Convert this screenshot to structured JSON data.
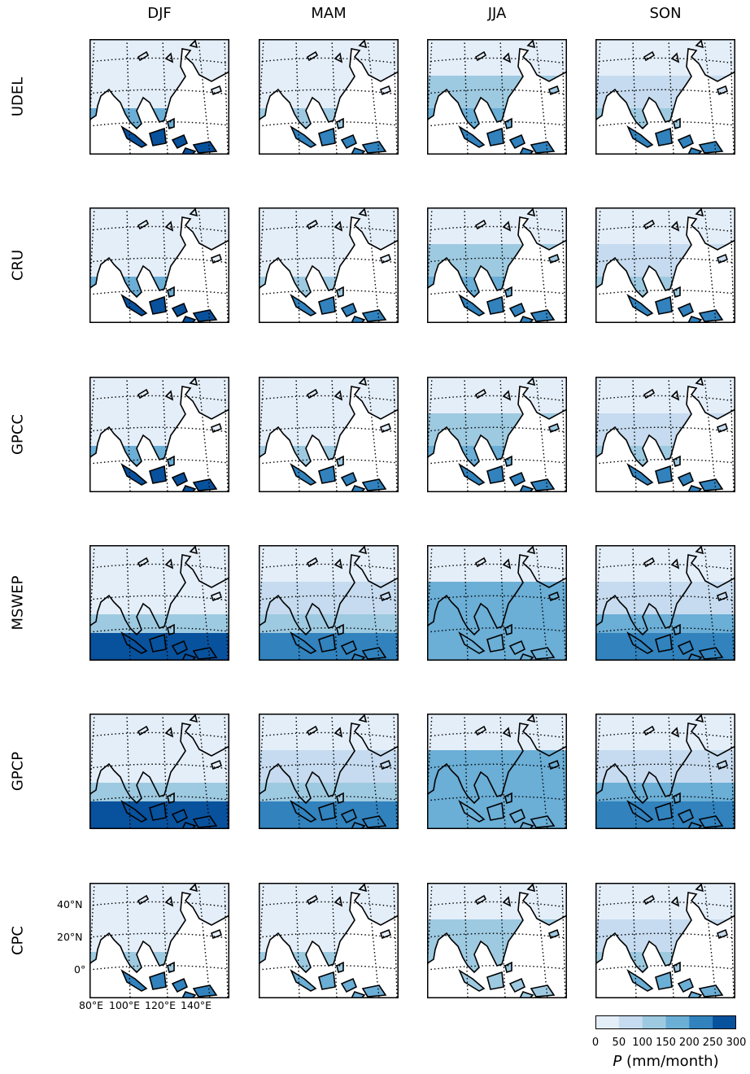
{
  "columns": [
    "DJF",
    "MAM",
    "JJA",
    "SON"
  ],
  "rows": [
    "UDEL",
    "CRU",
    "GPCC",
    "MSWEP",
    "GPCP",
    "CPC"
  ],
  "axes": {
    "lat_ticks": [
      "40°N",
      "20°N",
      "0°"
    ],
    "lon_ticks": [
      "80°E",
      "100°E",
      "120°E",
      "140°E"
    ]
  },
  "colorbar": {
    "ticks": [
      "0",
      "50",
      "100",
      "150",
      "200",
      "250",
      "300"
    ],
    "label_var": "P",
    "label_unit": " (mm/month)",
    "colors": [
      "#e4eef9",
      "#c6dbef",
      "#9ecae1",
      "#6baed6",
      "#3182bd",
      "#08519c"
    ]
  },
  "colors": {
    "land": "#e4eef9",
    "ocean": "#ffffff",
    "coast": "#000000"
  },
  "chart_data": {
    "type": "heatmap",
    "variable": "P",
    "units": "mm/month",
    "levels": [
      0,
      50,
      100,
      150,
      200,
      250,
      300
    ],
    "columns": [
      "DJF",
      "MAM",
      "JJA",
      "SON"
    ],
    "rows": [
      "UDEL",
      "CRU",
      "GPCC",
      "MSWEP",
      "GPCP",
      "CPC"
    ],
    "datasets": {
      "UDEL": {
        "coverage": "land",
        "DJF": {
          "north": 25,
          "south": 280
        },
        "MAM": {
          "north": 40,
          "south": 230
        },
        "JJA": {
          "north": 140,
          "south": 230
        },
        "SON": {
          "north": 60,
          "south": 230
        }
      },
      "CRU": {
        "coverage": "land",
        "DJF": {
          "north": 25,
          "south": 280
        },
        "MAM": {
          "north": 40,
          "south": 230
        },
        "JJA": {
          "north": 140,
          "south": 230
        },
        "SON": {
          "north": 60,
          "south": 230
        }
      },
      "GPCC": {
        "coverage": "land",
        "DJF": {
          "north": 25,
          "south": 280
        },
        "MAM": {
          "north": 40,
          "south": 230
        },
        "JJA": {
          "north": 140,
          "south": 230
        },
        "SON": {
          "north": 60,
          "south": 230
        }
      },
      "MSWEP": {
        "coverage": "global",
        "DJF": {
          "north": 40,
          "south": 260
        },
        "MAM": {
          "north": 60,
          "south": 230
        },
        "JJA": {
          "north": 170,
          "south": 160
        },
        "SON": {
          "north": 90,
          "south": 220
        }
      },
      "GPCP": {
        "coverage": "global",
        "DJF": {
          "north": 40,
          "south": 260
        },
        "MAM": {
          "north": 60,
          "south": 230
        },
        "JJA": {
          "north": 170,
          "south": 160
        },
        "SON": {
          "north": 90,
          "south": 220
        }
      },
      "CPC": {
        "coverage": "land",
        "DJF": {
          "north": 25,
          "south": 230
        },
        "MAM": {
          "north": 40,
          "south": 180
        },
        "JJA": {
          "north": 140,
          "south": 130
        },
        "SON": {
          "north": 60,
          "south": 180
        }
      }
    }
  }
}
